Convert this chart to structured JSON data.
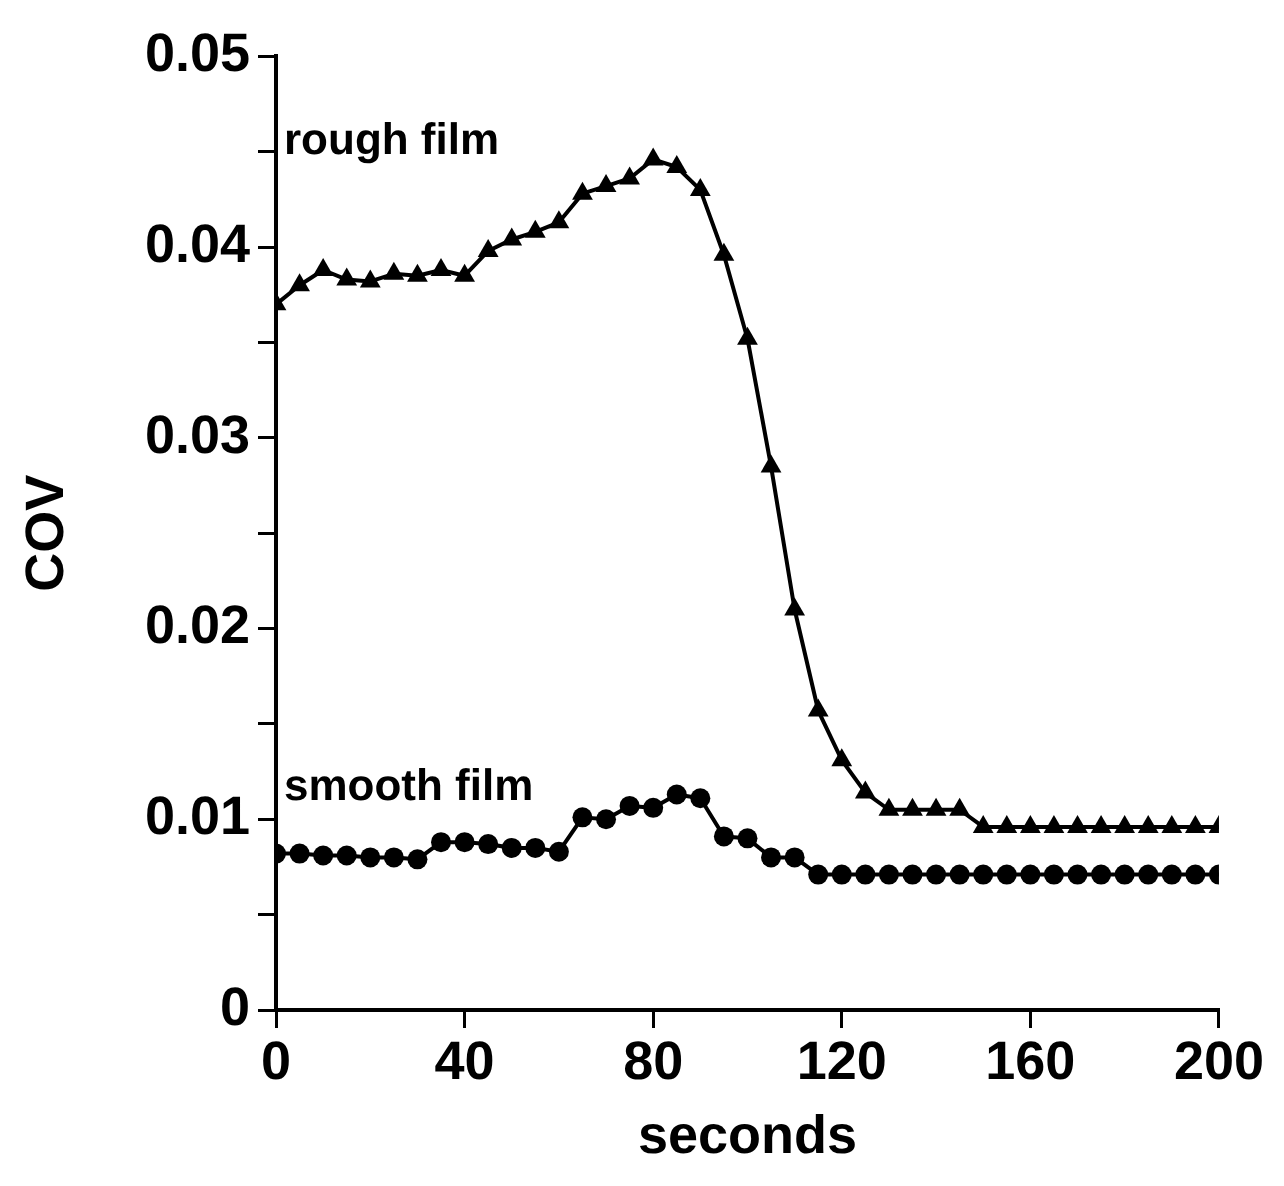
{
  "chart_data": {
    "type": "line",
    "xlabel": "seconds",
    "ylabel": "COV",
    "xlim": [
      0,
      200
    ],
    "xticks": [
      0,
      40,
      80,
      120,
      160,
      200
    ],
    "ylim": [
      0,
      0.05
    ],
    "yticks": [
      0,
      {
        "value": 0.005,
        "label": null
      },
      0.01,
      {
        "value": 0.015,
        "label": null
      },
      0.02,
      {
        "value": 0.025,
        "label": null
      },
      0.03,
      {
        "value": 0.035,
        "label": null
      },
      0.04,
      {
        "value": 0.045,
        "label": null
      },
      0.05
    ],
    "grid": false,
    "line_style": "solid",
    "x": [
      0,
      5,
      10,
      15,
      20,
      25,
      30,
      35,
      40,
      45,
      50,
      55,
      60,
      65,
      70,
      75,
      80,
      85,
      90,
      95,
      100,
      105,
      110,
      115,
      120,
      125,
      130,
      135,
      140,
      145,
      150,
      155,
      160,
      165,
      170,
      175,
      180,
      185,
      190,
      195,
      200
    ],
    "series": [
      {
        "name": "rough film",
        "color": "#000000",
        "marker": "triangle",
        "values": [
          0.037,
          0.038,
          0.0388,
          0.0383,
          0.0382,
          0.0386,
          0.0385,
          0.0388,
          0.0385,
          0.0398,
          0.0404,
          0.0408,
          0.0413,
          0.0428,
          0.0432,
          0.0436,
          0.0446,
          0.0442,
          0.043,
          0.0396,
          0.0352,
          0.0285,
          0.021,
          0.0157,
          0.0131,
          0.0114,
          0.0105,
          0.0105,
          0.0105,
          0.0105,
          0.0096,
          0.0096,
          0.0096,
          0.0096,
          0.0096,
          0.0096,
          0.0096,
          0.0096,
          0.0096,
          0.0096,
          0.0096
        ]
      },
      {
        "name": "smooth film",
        "color": "#000000",
        "marker": "circle",
        "values": [
          0.0082,
          0.0082,
          0.0081,
          0.0081,
          0.008,
          0.008,
          0.0079,
          0.0088,
          0.0088,
          0.0087,
          0.0085,
          0.0085,
          0.0083,
          0.0101,
          0.01,
          0.0107,
          0.0106,
          0.0113,
          0.0111,
          0.0091,
          0.009,
          0.008,
          0.008,
          0.0071,
          0.0071,
          0.0071,
          0.0071,
          0.0071,
          0.0071,
          0.0071,
          0.0071,
          0.0071,
          0.0071,
          0.0071,
          0.0071,
          0.0071,
          0.0071,
          0.0071,
          0.0071,
          0.0071,
          0.0071
        ]
      }
    ]
  }
}
